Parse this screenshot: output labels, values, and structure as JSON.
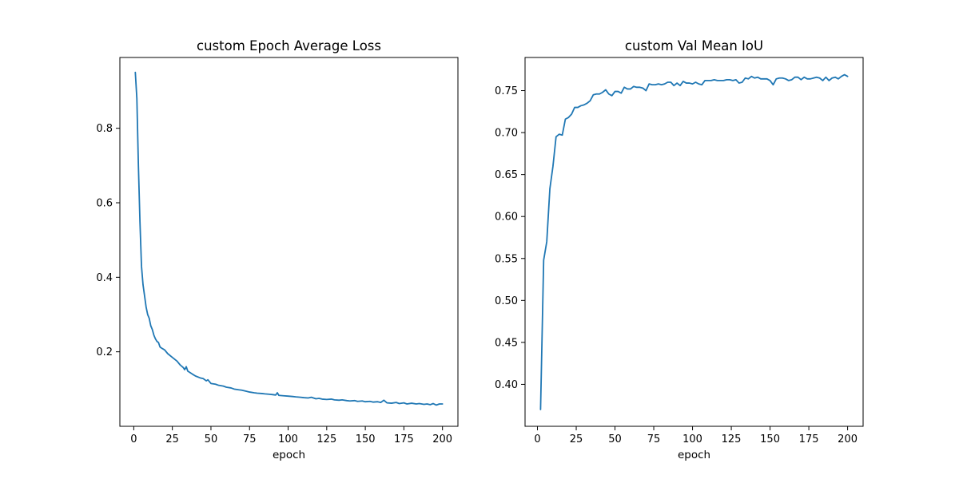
{
  "chart_data": [
    {
      "type": "line",
      "title": "custom Epoch Average Loss",
      "xlabel": "epoch",
      "ylabel": "",
      "xlim": [
        -9,
        210
      ],
      "ylim": [
        0.0,
        0.99
      ],
      "xticks": [
        0,
        25,
        50,
        75,
        100,
        125,
        150,
        175,
        200
      ],
      "yticks": [
        0.2,
        0.4,
        0.6,
        0.8
      ],
      "ytick_decimals": 1,
      "grid": false,
      "color": "#1f77b4",
      "points": [
        [
          1,
          0.95
        ],
        [
          2,
          0.88
        ],
        [
          3,
          0.7
        ],
        [
          4,
          0.55
        ],
        [
          5,
          0.43
        ],
        [
          6,
          0.38
        ],
        [
          7,
          0.35
        ],
        [
          8,
          0.32
        ],
        [
          9,
          0.3
        ],
        [
          10,
          0.29
        ],
        [
          11,
          0.27
        ],
        [
          12,
          0.26
        ],
        [
          13,
          0.245
        ],
        [
          14,
          0.235
        ],
        [
          15,
          0.228
        ],
        [
          16,
          0.225
        ],
        [
          17,
          0.213
        ],
        [
          18,
          0.21
        ],
        [
          20,
          0.205
        ],
        [
          22,
          0.195
        ],
        [
          25,
          0.185
        ],
        [
          28,
          0.175
        ],
        [
          30,
          0.165
        ],
        [
          32,
          0.158
        ],
        [
          33,
          0.152
        ],
        [
          34,
          0.16
        ],
        [
          35,
          0.148
        ],
        [
          38,
          0.14
        ],
        [
          40,
          0.135
        ],
        [
          43,
          0.13
        ],
        [
          45,
          0.128
        ],
        [
          47,
          0.122
        ],
        [
          48,
          0.125
        ],
        [
          50,
          0.115
        ],
        [
          53,
          0.113
        ],
        [
          55,
          0.11
        ],
        [
          58,
          0.108
        ],
        [
          60,
          0.105
        ],
        [
          63,
          0.103
        ],
        [
          65,
          0.1
        ],
        [
          68,
          0.098
        ],
        [
          70,
          0.097
        ],
        [
          73,
          0.094
        ],
        [
          75,
          0.092
        ],
        [
          78,
          0.09
        ],
        [
          80,
          0.089
        ],
        [
          83,
          0.088
        ],
        [
          85,
          0.087
        ],
        [
          88,
          0.086
        ],
        [
          90,
          0.085
        ],
        [
          92,
          0.084
        ],
        [
          93,
          0.09
        ],
        [
          94,
          0.083
        ],
        [
          97,
          0.082
        ],
        [
          100,
          0.081
        ],
        [
          103,
          0.08
        ],
        [
          105,
          0.079
        ],
        [
          108,
          0.078
        ],
        [
          110,
          0.077
        ],
        [
          113,
          0.076
        ],
        [
          115,
          0.078
        ],
        [
          118,
          0.074
        ],
        [
          120,
          0.075
        ],
        [
          122,
          0.073
        ],
        [
          125,
          0.072
        ],
        [
          128,
          0.073
        ],
        [
          130,
          0.071
        ],
        [
          133,
          0.07
        ],
        [
          135,
          0.071
        ],
        [
          138,
          0.069
        ],
        [
          140,
          0.068
        ],
        [
          143,
          0.069
        ],
        [
          145,
          0.067
        ],
        [
          148,
          0.068
        ],
        [
          150,
          0.066
        ],
        [
          153,
          0.067
        ],
        [
          155,
          0.065
        ],
        [
          158,
          0.066
        ],
        [
          160,
          0.064
        ],
        [
          162,
          0.07
        ],
        [
          164,
          0.063
        ],
        [
          167,
          0.062
        ],
        [
          170,
          0.064
        ],
        [
          172,
          0.061
        ],
        [
          175,
          0.063
        ],
        [
          177,
          0.06
        ],
        [
          180,
          0.062
        ],
        [
          183,
          0.06
        ],
        [
          185,
          0.061
        ],
        [
          188,
          0.059
        ],
        [
          190,
          0.06
        ],
        [
          192,
          0.058
        ],
        [
          194,
          0.061
        ],
        [
          196,
          0.057
        ],
        [
          198,
          0.06
        ],
        [
          200,
          0.06
        ]
      ]
    },
    {
      "type": "line",
      "title": "custom Val Mean IoU",
      "xlabel": "epoch",
      "ylabel": "",
      "xlim": [
        -8,
        210
      ],
      "ylim": [
        0.35,
        0.7895
      ],
      "xticks": [
        0,
        25,
        50,
        75,
        100,
        125,
        150,
        175,
        200
      ],
      "yticks": [
        0.4,
        0.45,
        0.5,
        0.55,
        0.6,
        0.65,
        0.7,
        0.75
      ],
      "ytick_decimals": 2,
      "grid": false,
      "color": "#1f77b4",
      "points": [
        [
          2,
          0.37
        ],
        [
          4,
          0.548
        ],
        [
          6,
          0.57
        ],
        [
          8,
          0.633
        ],
        [
          10,
          0.66
        ],
        [
          12,
          0.695
        ],
        [
          14,
          0.698
        ],
        [
          16,
          0.697
        ],
        [
          18,
          0.716
        ],
        [
          20,
          0.718
        ],
        [
          22,
          0.722
        ],
        [
          24,
          0.73
        ],
        [
          26,
          0.73
        ],
        [
          28,
          0.732
        ],
        [
          30,
          0.733
        ],
        [
          32,
          0.735
        ],
        [
          34,
          0.738
        ],
        [
          36,
          0.745
        ],
        [
          38,
          0.746
        ],
        [
          40,
          0.746
        ],
        [
          42,
          0.748
        ],
        [
          44,
          0.751
        ],
        [
          46,
          0.746
        ],
        [
          48,
          0.744
        ],
        [
          50,
          0.749
        ],
        [
          52,
          0.749
        ],
        [
          54,
          0.747
        ],
        [
          56,
          0.754
        ],
        [
          58,
          0.752
        ],
        [
          60,
          0.752
        ],
        [
          62,
          0.755
        ],
        [
          64,
          0.754
        ],
        [
          66,
          0.754
        ],
        [
          68,
          0.753
        ],
        [
          70,
          0.75
        ],
        [
          72,
          0.758
        ],
        [
          74,
          0.757
        ],
        [
          76,
          0.757
        ],
        [
          78,
          0.758
        ],
        [
          80,
          0.757
        ],
        [
          82,
          0.758
        ],
        [
          84,
          0.76
        ],
        [
          86,
          0.76
        ],
        [
          88,
          0.756
        ],
        [
          90,
          0.759
        ],
        [
          92,
          0.756
        ],
        [
          94,
          0.761
        ],
        [
          96,
          0.759
        ],
        [
          98,
          0.759
        ],
        [
          100,
          0.758
        ],
        [
          102,
          0.76
        ],
        [
          104,
          0.758
        ],
        [
          106,
          0.757
        ],
        [
          108,
          0.762
        ],
        [
          110,
          0.762
        ],
        [
          112,
          0.762
        ],
        [
          114,
          0.763
        ],
        [
          116,
          0.762
        ],
        [
          118,
          0.762
        ],
        [
          120,
          0.762
        ],
        [
          122,
          0.763
        ],
        [
          124,
          0.763
        ],
        [
          126,
          0.762
        ],
        [
          128,
          0.763
        ],
        [
          130,
          0.759
        ],
        [
          132,
          0.76
        ],
        [
          134,
          0.765
        ],
        [
          136,
          0.764
        ],
        [
          138,
          0.767
        ],
        [
          140,
          0.765
        ],
        [
          142,
          0.766
        ],
        [
          144,
          0.764
        ],
        [
          146,
          0.764
        ],
        [
          148,
          0.764
        ],
        [
          150,
          0.762
        ],
        [
          152,
          0.757
        ],
        [
          154,
          0.764
        ],
        [
          156,
          0.765
        ],
        [
          158,
          0.765
        ],
        [
          160,
          0.764
        ],
        [
          162,
          0.762
        ],
        [
          164,
          0.763
        ],
        [
          166,
          0.766
        ],
        [
          168,
          0.766
        ],
        [
          170,
          0.763
        ],
        [
          172,
          0.766
        ],
        [
          174,
          0.764
        ],
        [
          176,
          0.764
        ],
        [
          178,
          0.765
        ],
        [
          180,
          0.766
        ],
        [
          182,
          0.765
        ],
        [
          184,
          0.762
        ],
        [
          186,
          0.766
        ],
        [
          188,
          0.762
        ],
        [
          190,
          0.765
        ],
        [
          192,
          0.766
        ],
        [
          194,
          0.764
        ],
        [
          196,
          0.767
        ],
        [
          198,
          0.769
        ],
        [
          200,
          0.767
        ]
      ]
    }
  ]
}
